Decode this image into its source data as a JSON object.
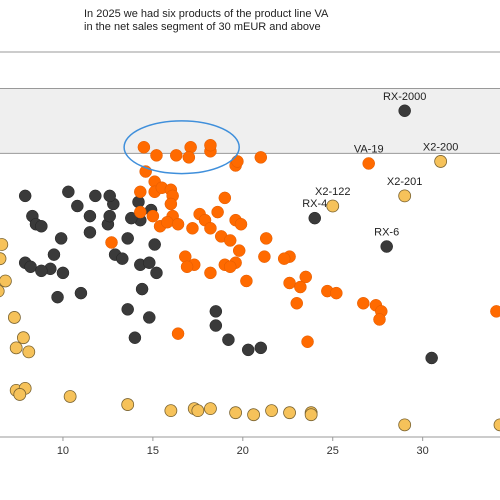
{
  "annotation": {
    "line1": "In 2025 we had six products of the product line VA",
    "line2": "in the net sales segment of 30 mEUR and above"
  },
  "colors": {
    "band_fill": "#efefef",
    "band_border": "#999999",
    "highlight_ellipse": "#3f8fdb",
    "dark": "#3a3a3a",
    "orange": "#ff6a00",
    "yellow": "#f6c25a",
    "yellow_stroke": "#7a6330"
  },
  "chart_data": {
    "type": "scatter",
    "title": "",
    "xlabel": "",
    "ylabel": "",
    "xlim": [
      6.5,
      34.3
    ],
    "ylim": [
      -0.85,
      8.65
    ],
    "xticks": [
      10,
      15,
      20,
      25,
      30
    ],
    "grid": false,
    "band": {
      "y_from": 6.15,
      "y_to": 7.75
    },
    "highlight": {
      "x_center": 16.6,
      "y_center": 6.3,
      "x_radius": 3.2,
      "y_radius": 0.65
    },
    "series": [
      {
        "color_key": "dark",
        "points": [
          [
            29,
            7.2
          ],
          [
            24,
            4.55
          ],
          [
            28,
            3.85
          ],
          [
            30.5,
            1.1
          ],
          [
            21,
            1.35
          ],
          [
            20.3,
            1.3
          ],
          [
            19.2,
            1.55
          ],
          [
            18.5,
            1.9
          ],
          [
            18.5,
            2.25
          ],
          [
            14,
            1.6
          ],
          [
            14.8,
            2.1
          ],
          [
            13.6,
            2.3
          ],
          [
            14.4,
            2.8
          ],
          [
            15.2,
            3.2
          ],
          [
            14.3,
            3.4
          ],
          [
            14.8,
            3.45
          ],
          [
            15.1,
            3.9
          ],
          [
            14.3,
            4.5
          ],
          [
            14.2,
            4.95
          ],
          [
            14.9,
            4.75
          ],
          [
            13.8,
            4.55
          ],
          [
            13.6,
            4.05
          ],
          [
            12.9,
            3.65
          ],
          [
            12.5,
            4.4
          ],
          [
            12.6,
            4.6
          ],
          [
            12.8,
            4.9
          ],
          [
            13.3,
            3.55
          ],
          [
            11.5,
            4.2
          ],
          [
            11.5,
            4.6
          ],
          [
            10.8,
            4.85
          ],
          [
            11.8,
            5.1
          ],
          [
            12.6,
            5.1
          ],
          [
            10.3,
            5.2
          ],
          [
            7.9,
            5.1
          ],
          [
            8.3,
            4.6
          ],
          [
            8.5,
            4.4
          ],
          [
            8.8,
            4.35
          ],
          [
            9.9,
            4.05
          ],
          [
            9.5,
            3.65
          ],
          [
            7.9,
            3.45
          ],
          [
            8.2,
            3.35
          ],
          [
            9.3,
            3.3
          ],
          [
            8.8,
            3.25
          ],
          [
            10.0,
            3.2
          ],
          [
            11.0,
            2.7
          ],
          [
            9.7,
            2.6
          ]
        ]
      },
      {
        "color_key": "orange",
        "points": [
          [
            14.5,
            6.3
          ],
          [
            15.2,
            6.1
          ],
          [
            16.3,
            6.1
          ],
          [
            17.1,
            6.3
          ],
          [
            17,
            6.05
          ],
          [
            18.2,
            6.2
          ],
          [
            18.2,
            6.35
          ],
          [
            19.6,
            5.85
          ],
          [
            19.7,
            5.95
          ],
          [
            21,
            6.05
          ],
          [
            27,
            5.9
          ],
          [
            14.6,
            5.7
          ],
          [
            15.1,
            5.45
          ],
          [
            14.3,
            5.2
          ],
          [
            15.1,
            5.2
          ],
          [
            15.5,
            5.3
          ],
          [
            16.0,
            5.25
          ],
          [
            16.1,
            5.1
          ],
          [
            16.0,
            4.9
          ],
          [
            16.1,
            4.6
          ],
          [
            15,
            4.6
          ],
          [
            14.3,
            4.7
          ],
          [
            15.4,
            4.35
          ],
          [
            15.8,
            4.45
          ],
          [
            16.4,
            4.4
          ],
          [
            17.2,
            4.3
          ],
          [
            18.6,
            4.7
          ],
          [
            17.6,
            4.65
          ],
          [
            17.9,
            4.5
          ],
          [
            18.2,
            4.3
          ],
          [
            18.8,
            4.1
          ],
          [
            19,
            5.05
          ],
          [
            19.6,
            4.5
          ],
          [
            19.9,
            4.4
          ],
          [
            19.3,
            4.0
          ],
          [
            19.8,
            3.75
          ],
          [
            21.3,
            4.05
          ],
          [
            21.2,
            3.6
          ],
          [
            22.6,
            3.6
          ],
          [
            22.3,
            3.55
          ],
          [
            18.2,
            3.2
          ],
          [
            19,
            3.4
          ],
          [
            19.6,
            3.45
          ],
          [
            19.3,
            3.35
          ],
          [
            17.3,
            3.4
          ],
          [
            16.8,
            3.6
          ],
          [
            16.9,
            3.35
          ],
          [
            20.2,
            3.0
          ],
          [
            22.6,
            2.95
          ],
          [
            23.5,
            3.1
          ],
          [
            23.2,
            2.85
          ],
          [
            23.0,
            2.45
          ],
          [
            24.7,
            2.75
          ],
          [
            25.2,
            2.7
          ],
          [
            26.7,
            2.45
          ],
          [
            27.4,
            2.4
          ],
          [
            27.7,
            2.25
          ],
          [
            27.6,
            2.05
          ],
          [
            23.6,
            1.5
          ],
          [
            16.4,
            1.7
          ],
          [
            12.7,
            3.95
          ],
          [
            34.1,
            2.25
          ]
        ]
      },
      {
        "color_key": "yellow",
        "points": [
          [
            31,
            5.95
          ],
          [
            29,
            5.1
          ],
          [
            25,
            4.85
          ],
          [
            6.6,
            3.9
          ],
          [
            6.5,
            3.55
          ],
          [
            6.8,
            3.0
          ],
          [
            6.4,
            2.75
          ],
          [
            7.3,
            2.1
          ],
          [
            7.8,
            1.6
          ],
          [
            7.4,
            1.35
          ],
          [
            8.1,
            1.25
          ],
          [
            7.4,
            0.3
          ],
          [
            7.9,
            0.35
          ],
          [
            7.6,
            0.2
          ],
          [
            10.4,
            0.15
          ],
          [
            13.6,
            -0.05
          ],
          [
            16.0,
            -0.2
          ],
          [
            17.3,
            -0.15
          ],
          [
            17.5,
            -0.2
          ],
          [
            18.2,
            -0.15
          ],
          [
            19.6,
            -0.25
          ],
          [
            20.6,
            -0.3
          ],
          [
            21.6,
            -0.2
          ],
          [
            22.6,
            -0.25
          ],
          [
            23.8,
            -0.25
          ],
          [
            23.8,
            -0.3
          ],
          [
            29,
            -0.55
          ],
          [
            34.3,
            -0.55
          ]
        ]
      }
    ],
    "annotations": [
      {
        "text": "RX-2000",
        "x": 29,
        "y": 7.2
      },
      {
        "text": "VA-19",
        "x": 27,
        "y": 5.9
      },
      {
        "text": "X2-200",
        "x": 31,
        "y": 5.95
      },
      {
        "text": "X2-201",
        "x": 29,
        "y": 5.1
      },
      {
        "text": "X2-122",
        "x": 25,
        "y": 4.85
      },
      {
        "text": "RX-4",
        "x": 24,
        "y": 4.55
      },
      {
        "text": "RX-6",
        "x": 28,
        "y": 3.85
      }
    ]
  }
}
